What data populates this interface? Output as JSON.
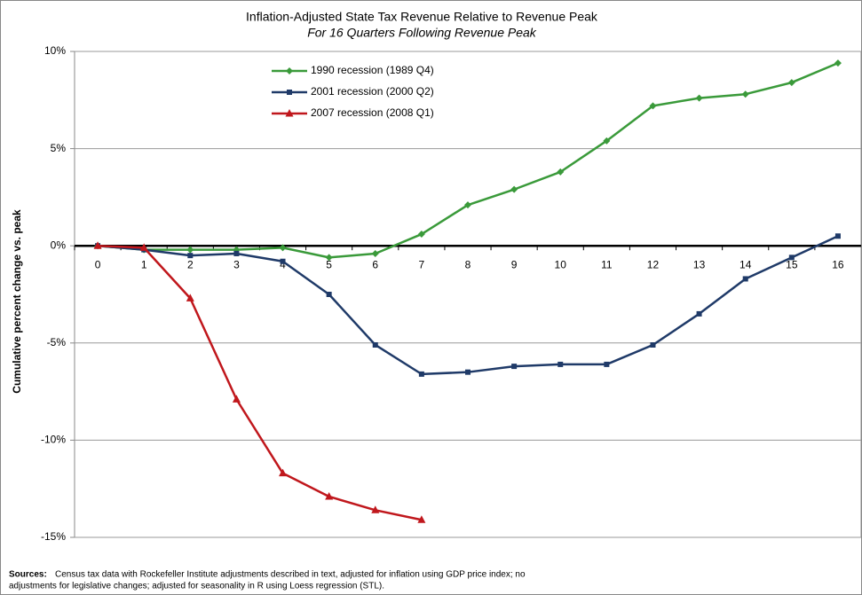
{
  "chart_data": {
    "type": "line",
    "title": "Inflation-Adjusted State Tax Revenue Relative to Revenue Peak",
    "subtitle": "For 16 Quarters Following Revenue Peak",
    "y_label": "Cumulative percent change vs. peak",
    "categories": [
      "0",
      "1",
      "2",
      "3",
      "4",
      "5",
      "6",
      "7",
      "8",
      "9",
      "10",
      "11",
      "12",
      "13",
      "14",
      "15",
      "16"
    ],
    "series": [
      {
        "name": "1990 recession (1989 Q4)",
        "color": "#3a9a3a",
        "marker": "diamond",
        "values": [
          0,
          -0.2,
          -0.2,
          -0.2,
          -0.1,
          -0.6,
          -0.4,
          0.6,
          2.1,
          2.9,
          3.8,
          5.4,
          7.2,
          7.6,
          7.8,
          8.4,
          9.4
        ]
      },
      {
        "name": "2001 recession (2000 Q2)",
        "color": "#1f3a68",
        "marker": "square",
        "values": [
          0,
          -0.2,
          -0.5,
          -0.4,
          -0.8,
          -2.5,
          -5.1,
          -6.6,
          -6.5,
          -6.2,
          -6.1,
          -6.1,
          -5.1,
          -3.5,
          -1.7,
          -0.6,
          0.5
        ]
      },
      {
        "name": "2007 recession (2008 Q1)",
        "color": "#c0171c",
        "marker": "triangle",
        "values": [
          0,
          -0.1,
          -2.7,
          -7.9,
          -11.7,
          -12.9,
          -13.6,
          -14.1,
          null,
          null,
          null,
          null,
          null,
          null,
          null,
          null,
          null
        ]
      }
    ],
    "ylim": [
      -15,
      10
    ],
    "yticks": [
      {
        "value": -15,
        "label": "-15%"
      },
      {
        "value": -10,
        "label": "-10%"
      },
      {
        "value": -5,
        "label": "-5%"
      },
      {
        "value": 0,
        "label": "0%"
      },
      {
        "value": 5,
        "label": "5%"
      },
      {
        "value": 10,
        "label": "10%"
      }
    ],
    "grid": true,
    "legend": "top-center",
    "sources_label": "Sources:",
    "sources_lines": [
      "Census tax data with Rockefeller Institute adjustments described in text, adjusted for inflation using GDP price index; no",
      "adjustments for legislative changes; adjusted for seasonality in R using Loess regression (STL)."
    ]
  }
}
